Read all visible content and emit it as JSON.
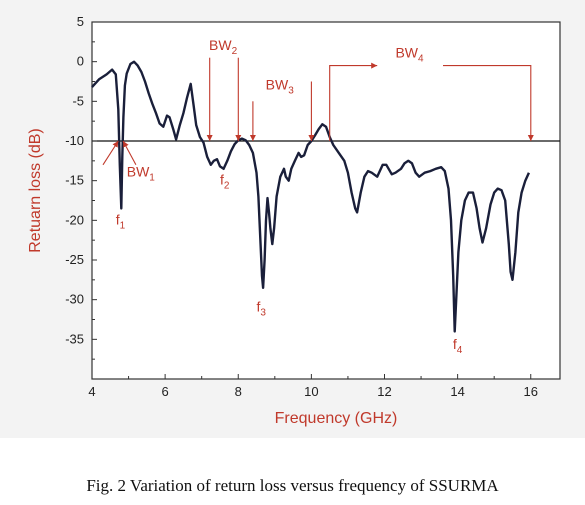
{
  "chart_data": {
    "type": "line",
    "xlabel": "Frequency (GHz)",
    "ylabel": "Retuarn loss (dB)",
    "xlim": [
      4,
      16.8
    ],
    "ylim": [
      -40,
      5
    ],
    "x_ticks": [
      4,
      6,
      8,
      10,
      12,
      14,
      16
    ],
    "y_ticks": [
      5,
      0,
      -5,
      -10,
      -15,
      -20,
      -25,
      -30,
      -35
    ],
    "grid": false,
    "reference_line": -10,
    "series": [
      {
        "color": "#1a1f3a",
        "points": [
          [
            4.0,
            -3.2
          ],
          [
            4.2,
            -2.2
          ],
          [
            4.4,
            -1.6
          ],
          [
            4.55,
            -1.0
          ],
          [
            4.65,
            -1.6
          ],
          [
            4.72,
            -6.0
          ],
          [
            4.76,
            -13.0
          ],
          [
            4.8,
            -18.5
          ],
          [
            4.83,
            -12.0
          ],
          [
            4.86,
            -7.0
          ],
          [
            4.9,
            -3.0
          ],
          [
            4.95,
            -1.5
          ],
          [
            5.05,
            -0.3
          ],
          [
            5.15,
            0.0
          ],
          [
            5.25,
            -0.5
          ],
          [
            5.35,
            -1.3
          ],
          [
            5.45,
            -2.5
          ],
          [
            5.55,
            -4.0
          ],
          [
            5.65,
            -5.3
          ],
          [
            5.75,
            -6.5
          ],
          [
            5.85,
            -7.8
          ],
          [
            5.95,
            -8.2
          ],
          [
            6.05,
            -6.8
          ],
          [
            6.12,
            -7.0
          ],
          [
            6.22,
            -8.5
          ],
          [
            6.3,
            -9.8
          ],
          [
            6.4,
            -8.0
          ],
          [
            6.5,
            -6.5
          ],
          [
            6.6,
            -4.5
          ],
          [
            6.7,
            -2.8
          ],
          [
            6.78,
            -5.5
          ],
          [
            6.85,
            -8.0
          ],
          [
            6.95,
            -9.5
          ],
          [
            7.05,
            -10.2
          ],
          [
            7.15,
            -12.0
          ],
          [
            7.25,
            -13.0
          ],
          [
            7.33,
            -12.5
          ],
          [
            7.42,
            -12.3
          ],
          [
            7.5,
            -13.2
          ],
          [
            7.6,
            -13.5
          ],
          [
            7.7,
            -12.5
          ],
          [
            7.8,
            -11.3
          ],
          [
            7.9,
            -10.4
          ],
          [
            8.0,
            -9.9
          ],
          [
            8.1,
            -9.7
          ],
          [
            8.2,
            -9.9
          ],
          [
            8.3,
            -10.5
          ],
          [
            8.4,
            -11.5
          ],
          [
            8.5,
            -14.0
          ],
          [
            8.55,
            -17.0
          ],
          [
            8.6,
            -22.0
          ],
          [
            8.65,
            -27.0
          ],
          [
            8.68,
            -28.5
          ],
          [
            8.72,
            -25.0
          ],
          [
            8.76,
            -20.0
          ],
          [
            8.8,
            -17.2
          ],
          [
            8.84,
            -19.0
          ],
          [
            8.88,
            -21.0
          ],
          [
            8.93,
            -23.0
          ],
          [
            8.98,
            -21.0
          ],
          [
            9.05,
            -17.0
          ],
          [
            9.15,
            -14.5
          ],
          [
            9.25,
            -13.5
          ],
          [
            9.3,
            -14.5
          ],
          [
            9.38,
            -15.0
          ],
          [
            9.45,
            -13.5
          ],
          [
            9.55,
            -12.5
          ],
          [
            9.65,
            -11.5
          ],
          [
            9.72,
            -12.0
          ],
          [
            9.8,
            -11.8
          ],
          [
            9.9,
            -10.5
          ],
          [
            10.0,
            -10.0
          ],
          [
            10.1,
            -9.3
          ],
          [
            10.2,
            -8.5
          ],
          [
            10.3,
            -7.9
          ],
          [
            10.4,
            -8.2
          ],
          [
            10.5,
            -9.5
          ],
          [
            10.6,
            -10.5
          ],
          [
            10.75,
            -11.5
          ],
          [
            10.9,
            -12.5
          ],
          [
            11.0,
            -14.0
          ],
          [
            11.1,
            -16.5
          ],
          [
            11.2,
            -18.5
          ],
          [
            11.25,
            -19.0
          ],
          [
            11.35,
            -16.5
          ],
          [
            11.45,
            -14.5
          ],
          [
            11.55,
            -13.8
          ],
          [
            11.65,
            -14.0
          ],
          [
            11.8,
            -14.5
          ],
          [
            11.95,
            -13.0
          ],
          [
            12.05,
            -13.0
          ],
          [
            12.2,
            -14.2
          ],
          [
            12.3,
            -14.0
          ],
          [
            12.45,
            -13.5
          ],
          [
            12.55,
            -12.8
          ],
          [
            12.65,
            -12.5
          ],
          [
            12.75,
            -12.8
          ],
          [
            12.85,
            -14.0
          ],
          [
            12.95,
            -14.5
          ],
          [
            13.1,
            -14.0
          ],
          [
            13.25,
            -13.8
          ],
          [
            13.4,
            -13.5
          ],
          [
            13.55,
            -13.3
          ],
          [
            13.65,
            -13.8
          ],
          [
            13.75,
            -16.0
          ],
          [
            13.82,
            -20.0
          ],
          [
            13.88,
            -27.0
          ],
          [
            13.92,
            -34.0
          ],
          [
            13.96,
            -30.0
          ],
          [
            14.02,
            -24.0
          ],
          [
            14.1,
            -20.0
          ],
          [
            14.2,
            -17.5
          ],
          [
            14.3,
            -16.5
          ],
          [
            14.42,
            -16.5
          ],
          [
            14.52,
            -18.5
          ],
          [
            14.6,
            -21.0
          ],
          [
            14.68,
            -22.8
          ],
          [
            14.78,
            -21.0
          ],
          [
            14.9,
            -18.0
          ],
          [
            15.0,
            -16.5
          ],
          [
            15.1,
            -16.0
          ],
          [
            15.2,
            -16.2
          ],
          [
            15.3,
            -17.5
          ],
          [
            15.4,
            -23.0
          ],
          [
            15.45,
            -26.5
          ],
          [
            15.5,
            -27.5
          ],
          [
            15.58,
            -24.0
          ],
          [
            15.66,
            -19.0
          ],
          [
            15.75,
            -16.5
          ],
          [
            15.85,
            -15.0
          ],
          [
            15.95,
            -14.0
          ]
        ]
      }
    ],
    "annotations": [
      {
        "label": "BW",
        "sub": "1",
        "x": 4.95,
        "y": -14.5,
        "arrows": [
          [
            4.3,
            -13.0,
            4.72,
            -10.0
          ],
          [
            5.2,
            -13.0,
            4.85,
            -10.0
          ]
        ]
      },
      {
        "label": "BW",
        "sub": "2",
        "x": 7.2,
        "y": 1.5,
        "arrows": [
          [
            7.22,
            0.5,
            7.22,
            -10.0
          ],
          [
            8.0,
            0.5,
            8.0,
            -10.0
          ],
          [
            8.4,
            -5.0,
            8.4,
            -10.0
          ]
        ]
      },
      {
        "label": "BW",
        "sub": "3",
        "x": 8.75,
        "y": -3.5,
        "arrows": [
          [
            10.0,
            -2.5,
            10.0,
            -10.0
          ]
        ]
      },
      {
        "label": "BW",
        "sub": "4",
        "x": 12.3,
        "y": 0.5,
        "arrows": [
          [
            10.5,
            -10.0,
            10.5,
            -0.5,
            11.8,
            -0.5
          ],
          [
            13.6,
            -0.5,
            16.0,
            -0.5,
            16.0,
            -10.0
          ]
        ]
      },
      {
        "label": "f",
        "sub": "1",
        "x": 4.65,
        "y": -20.5
      },
      {
        "label": "f",
        "sub": "2",
        "x": 7.5,
        "y": -15.5
      },
      {
        "label": "f",
        "sub": "3",
        "x": 8.5,
        "y": -31.5
      },
      {
        "label": "f",
        "sub": "4",
        "x": 13.87,
        "y": -36.2
      }
    ]
  },
  "caption": "Fig. 2 Variation of return loss versus frequency of SSURMA"
}
